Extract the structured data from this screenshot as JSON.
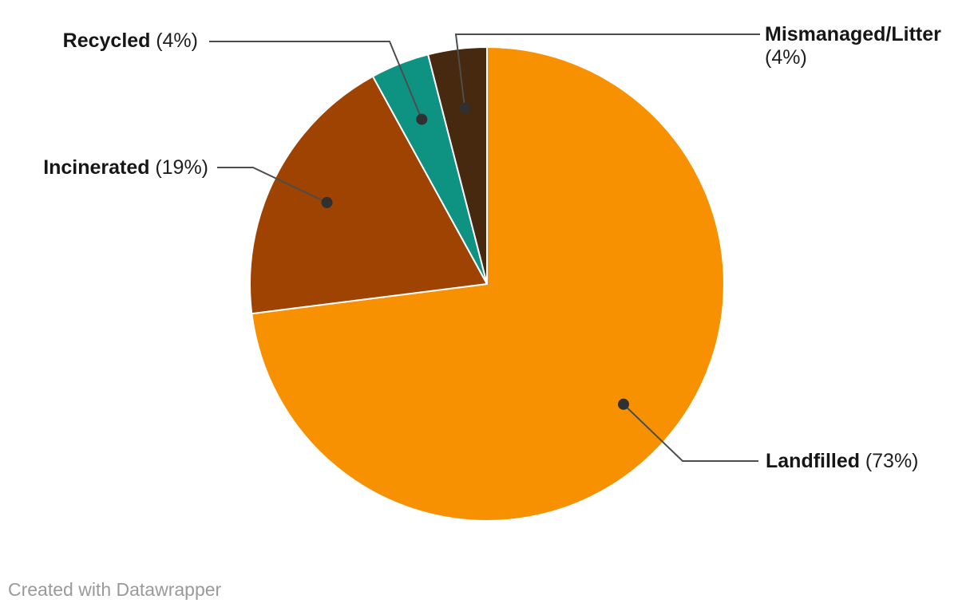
{
  "chart_data": {
    "type": "pie",
    "title": "",
    "direction": "clockwise",
    "start_angle_deg": 0,
    "total": 100,
    "label_style": "outside-with-leader-lines",
    "slices": [
      {
        "label": "Landfilled",
        "value": 73,
        "pct_text": "(73%)",
        "color": "#F89102"
      },
      {
        "label": "Incinerated",
        "value": 19,
        "pct_text": "(19%)",
        "color": "#9E4301"
      },
      {
        "label": "Recycled",
        "value": 4,
        "pct_text": "(4%)",
        "color": "#0E9282"
      },
      {
        "label": "Mismanaged/Litter",
        "value": 4,
        "pct_text": "(4%)",
        "color": "#46290F"
      }
    ]
  },
  "footer": {
    "credit": "Created with Datawrapper"
  },
  "colors": {
    "background": "#ffffff",
    "label_text": "#1a1a1a",
    "leader_line": "#4d4d4d",
    "leader_dot": "#303030",
    "slice_separator": "#ffffff",
    "credit_text": "#9a9a9a"
  }
}
